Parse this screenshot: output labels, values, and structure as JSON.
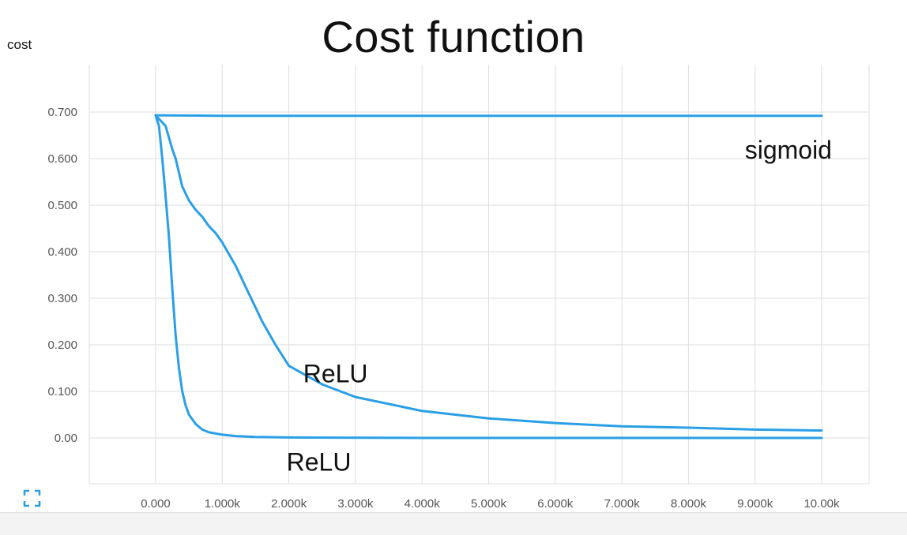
{
  "chart_data": {
    "type": "line",
    "title": "Cost function",
    "ylabel": "cost",
    "xlabel": "",
    "xlim": [
      0,
      10000
    ],
    "ylim": [
      -0.1,
      0.8
    ],
    "grid": true,
    "x_ticks": [
      0,
      1000,
      2000,
      3000,
      4000,
      5000,
      6000,
      7000,
      8000,
      9000,
      10000
    ],
    "x_tick_labels": [
      "0.000",
      "1.000k",
      "2.000k",
      "3.000k",
      "4.000k",
      "5.000k",
      "6.000k",
      "7.000k",
      "8.000k",
      "9.000k",
      "10.00k"
    ],
    "y_ticks": [
      0.0,
      0.1,
      0.2,
      0.3,
      0.4,
      0.5,
      0.6,
      0.7
    ],
    "y_tick_labels": [
      "0.00",
      "0.100",
      "0.200",
      "0.300",
      "0.400",
      "0.500",
      "0.600",
      "0.700"
    ],
    "line_color": "#2a9fe6",
    "series": [
      {
        "name": "sigmoid",
        "x": [
          0,
          1000,
          2000,
          4000,
          6000,
          8000,
          10000
        ],
        "y": [
          0.693,
          0.692,
          0.692,
          0.692,
          0.692,
          0.692,
          0.692
        ]
      },
      {
        "name": "ReLU",
        "x": [
          0,
          150,
          250,
          300,
          400,
          500,
          600,
          700,
          800,
          900,
          1000,
          1200,
          1400,
          1600,
          1800,
          2000,
          2500,
          3000,
          4000,
          5000,
          6000,
          7000,
          8000,
          9000,
          10000
        ],
        "y": [
          0.693,
          0.67,
          0.62,
          0.6,
          0.54,
          0.51,
          0.49,
          0.475,
          0.455,
          0.44,
          0.42,
          0.37,
          0.31,
          0.25,
          0.2,
          0.155,
          0.115,
          0.088,
          0.058,
          0.042,
          0.032,
          0.025,
          0.022,
          0.018,
          0.016
        ]
      },
      {
        "name": "ReLU",
        "x": [
          0,
          50,
          100,
          150,
          200,
          250,
          300,
          350,
          400,
          450,
          500,
          600,
          700,
          800,
          1000,
          1200,
          1500,
          2000,
          4000,
          6000,
          8000,
          10000
        ],
        "y": [
          0.693,
          0.67,
          0.6,
          0.52,
          0.43,
          0.32,
          0.22,
          0.15,
          0.1,
          0.07,
          0.05,
          0.03,
          0.018,
          0.012,
          0.007,
          0.004,
          0.002,
          0.001,
          0.0,
          0.0,
          0.0,
          0.0
        ]
      }
    ],
    "annotations": [
      {
        "text": "sigmoid",
        "x": 9500,
        "y": 0.62
      },
      {
        "text": "ReLU",
        "x": 2700,
        "y": 0.14
      },
      {
        "text": "ReLU",
        "x": 2450,
        "y": -0.05
      }
    ]
  },
  "icons": {
    "fit": "expand-corners-icon"
  }
}
